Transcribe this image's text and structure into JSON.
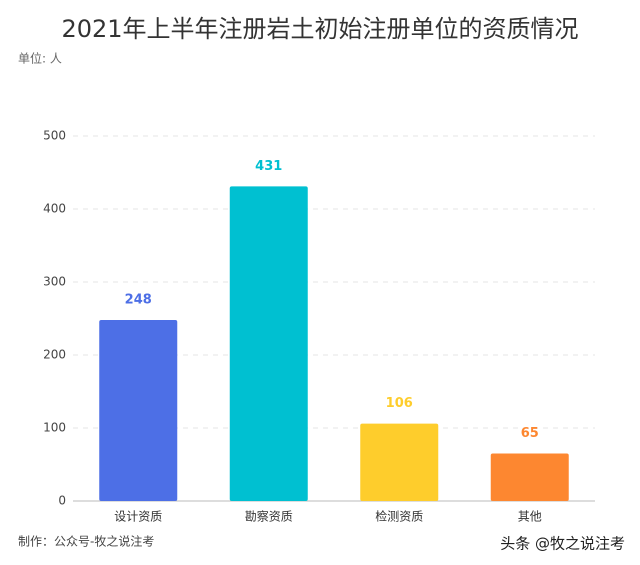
{
  "chart_data": {
    "type": "bar",
    "title": "2021年上半年注册岩土初始注册单位的资质情况",
    "unit_label": "单位: 人",
    "categories": [
      "设计资质",
      "勘察资质",
      "检测资质",
      "其他"
    ],
    "values": [
      248,
      431,
      106,
      65
    ],
    "colors": [
      "#4d6fe6",
      "#00c0d1",
      "#fecd2c",
      "#fd8730"
    ],
    "ylim": [
      0,
      500
    ],
    "yticks": [
      0,
      100,
      200,
      300,
      400,
      500
    ],
    "grid": true,
    "footer": "制作：公众号-牧之说注考",
    "watermark": "头条 @牧之说注考"
  }
}
